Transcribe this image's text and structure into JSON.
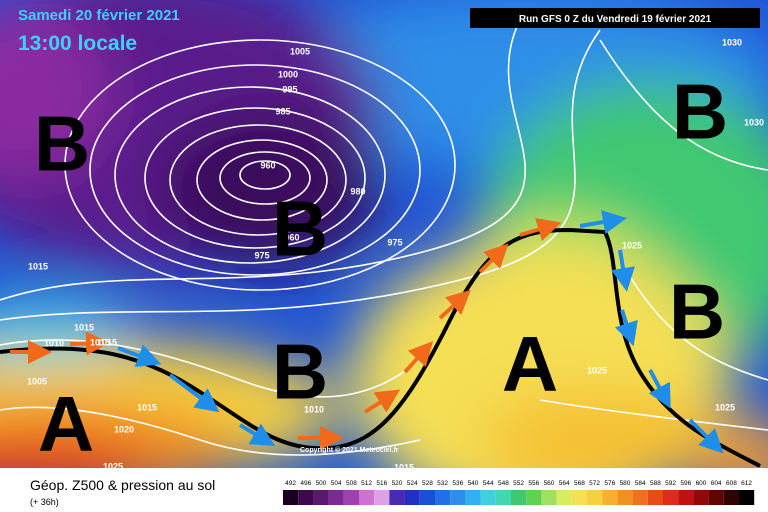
{
  "header": {
    "date": "Samedi 20 février 2021",
    "time": "13:00 locale",
    "run": "Run GFS 0 Z du Vendredi 19 février 2021"
  },
  "footer": {
    "title": "Géop. Z500 & pression au sol",
    "lead": "(+ 36h)",
    "copyright": "Copyright © 2021 Meteociel.fr"
  },
  "legend": {
    "scale": [
      492,
      496,
      500,
      504,
      508,
      512,
      516,
      520,
      524,
      528,
      532,
      536,
      540,
      544,
      548,
      552,
      556,
      560,
      564,
      568,
      572,
      576,
      580,
      584,
      588,
      592,
      596,
      600,
      604,
      608,
      612
    ]
  },
  "centers": [
    "B",
    "B",
    "B",
    "B",
    "B",
    "A",
    "A"
  ],
  "isobar_labels": [
    "1005",
    "1000",
    "995",
    "985",
    "960",
    "980",
    "975",
    "960",
    "975",
    "1015",
    "1030",
    "1030",
    "1025",
    "1015",
    "1015",
    "1010",
    "1015",
    "1005",
    "1015",
    "1020",
    "1025",
    "1010",
    "1015",
    "1025",
    "1025"
  ]
}
